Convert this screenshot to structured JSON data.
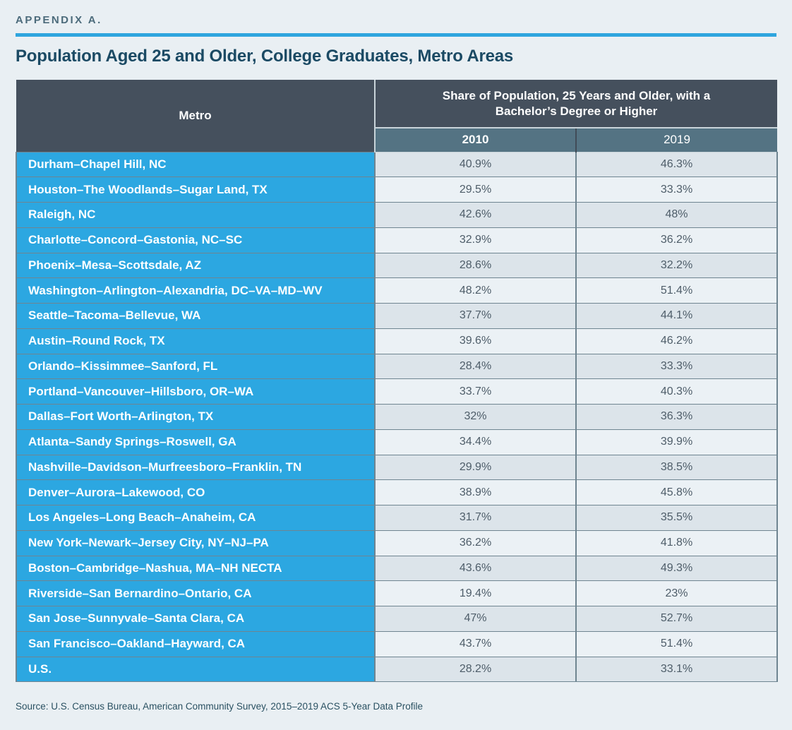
{
  "page": {
    "kicker": "APPENDIX A.",
    "title": "Population Aged 25 and Older, College Graduates, Metro Areas",
    "source": "Source: U.S. Census Bureau, American Community Survey, 2015–2019 ACS 5-Year Data Profile"
  },
  "colors": {
    "page_background": "#E9EFF3",
    "accent_rule_blue": "#2FA5DE",
    "header_dark_slate": "#45505D",
    "subheader_slate": "#547383",
    "metro_cell_blue": "#2CA7E1",
    "row_odd_bg": "#DCE4EA",
    "row_even_bg": "#EBF1F5",
    "title_teal": "#1B4A64"
  },
  "table": {
    "metro_header": "Metro",
    "group_header": "Share of Population, 25 Years and Older, with a Bachelor’s Degree or Higher",
    "year_headers": [
      "2010",
      "2019"
    ],
    "rows": [
      {
        "metro": "Durham–Chapel Hill, NC",
        "y2010": "40.9%",
        "y2019": "46.3%"
      },
      {
        "metro": "Houston–The Woodlands–Sugar Land, TX",
        "y2010": "29.5%",
        "y2019": "33.3%"
      },
      {
        "metro": "Raleigh, NC",
        "y2010": "42.6%",
        "y2019": "48%"
      },
      {
        "metro": "Charlotte–Concord–Gastonia, NC–SC",
        "y2010": "32.9%",
        "y2019": "36.2%"
      },
      {
        "metro": "Phoenix–Mesa–Scottsdale, AZ",
        "y2010": "28.6%",
        "y2019": "32.2%"
      },
      {
        "metro": "Washington–Arlington–Alexandria, DC–VA–MD–WV",
        "y2010": "48.2%",
        "y2019": "51.4%"
      },
      {
        "metro": "Seattle–Tacoma–Bellevue, WA",
        "y2010": "37.7%",
        "y2019": "44.1%"
      },
      {
        "metro": "Austin–Round Rock, TX",
        "y2010": "39.6%",
        "y2019": "46.2%"
      },
      {
        "metro": "Orlando–Kissimmee–Sanford, FL",
        "y2010": "28.4%",
        "y2019": "33.3%"
      },
      {
        "metro": "Portland–Vancouver–Hillsboro, OR–WA",
        "y2010": "33.7%",
        "y2019": "40.3%"
      },
      {
        "metro": "Dallas–Fort Worth–Arlington, TX",
        "y2010": "32%",
        "y2019": "36.3%"
      },
      {
        "metro": "Atlanta–Sandy Springs–Roswell, GA",
        "y2010": "34.4%",
        "y2019": "39.9%"
      },
      {
        "metro": "Nashville–Davidson–Murfreesboro–Franklin, TN",
        "y2010": "29.9%",
        "y2019": "38.5%"
      },
      {
        "metro": "Denver–Aurora–Lakewood, CO",
        "y2010": "38.9%",
        "y2019": "45.8%"
      },
      {
        "metro": "Los Angeles–Long Beach–Anaheim, CA",
        "y2010": "31.7%",
        "y2019": "35.5%"
      },
      {
        "metro": "New York–Newark–Jersey City, NY–NJ–PA",
        "y2010": "36.2%",
        "y2019": "41.8%"
      },
      {
        "metro": "Boston–Cambridge–Nashua, MA–NH NECTA",
        "y2010": "43.6%",
        "y2019": "49.3%"
      },
      {
        "metro": "Riverside–San Bernardino–Ontario, CA",
        "y2010": "19.4%",
        "y2019": "23%"
      },
      {
        "metro": "San Jose–Sunnyvale–Santa Clara, CA",
        "y2010": "47%",
        "y2019": "52.7%"
      },
      {
        "metro": "San Francisco–Oakland–Hayward, CA",
        "y2010": "43.7%",
        "y2019": "51.4%"
      },
      {
        "metro": "U.S.",
        "y2010": "28.2%",
        "y2019": "33.1%"
      }
    ]
  }
}
